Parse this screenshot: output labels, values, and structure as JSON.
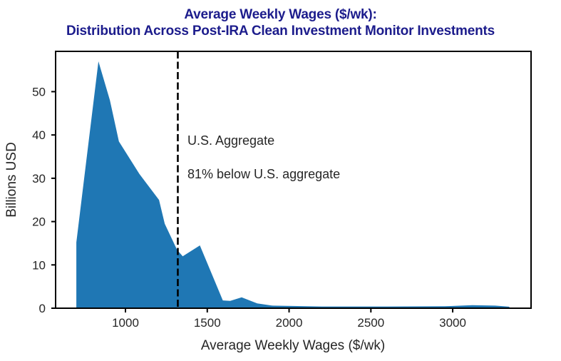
{
  "title": {
    "line1": "Average Weekly Wages ($/wk):",
    "line2": "Distribution Across Post-IRA Clean Investment Monitor Investments"
  },
  "colors": {
    "title": "#1c1c8c",
    "area": "#1f77b4",
    "axis": "#000000",
    "tick_text": "#262626",
    "vline": "#000000"
  },
  "chart_data": {
    "type": "area",
    "title": "Average Weekly Wages ($/wk): Distribution Across Post-IRA Clean Investment Monitor Investments",
    "xlabel": "Average Weekly Wages ($/wk)",
    "ylabel": "Billions USD",
    "xlim": [
      573,
      3479
    ],
    "ylim": [
      0,
      59.3
    ],
    "x_ticks": [
      1000,
      1500,
      2000,
      2500,
      3000
    ],
    "y_ticks": [
      0,
      10,
      20,
      30,
      40,
      50
    ],
    "grid": false,
    "legend": "none",
    "series": [
      {
        "name": "post-IRA clean investment distribution",
        "points": [
          [
            700,
            0
          ],
          [
            700,
            15.2
          ],
          [
            835,
            57
          ],
          [
            905,
            48
          ],
          [
            960,
            38.5
          ],
          [
            1085,
            31
          ],
          [
            1205,
            25
          ],
          [
            1240,
            19.5
          ],
          [
            1315,
            13.5
          ],
          [
            1350,
            12
          ],
          [
            1455,
            14.5
          ],
          [
            1595,
            1.8
          ],
          [
            1640,
            1.7
          ],
          [
            1710,
            2.5
          ],
          [
            1805,
            1.1
          ],
          [
            1900,
            0.6
          ],
          [
            2200,
            0.4
          ],
          [
            2600,
            0.4
          ],
          [
            2950,
            0.45
          ],
          [
            3120,
            0.7
          ],
          [
            3260,
            0.6
          ],
          [
            3345,
            0.35
          ],
          [
            3350,
            0
          ]
        ]
      }
    ],
    "vline": {
      "x": 1320,
      "style": "dashed",
      "meaning": "U.S. Aggregate"
    },
    "annotations": [
      {
        "text": "U.S. Aggregate",
        "x": 1379,
        "y": 37.7
      },
      {
        "text": "81% below U.S. aggregate",
        "x": 1379,
        "y": 30.0
      }
    ]
  }
}
